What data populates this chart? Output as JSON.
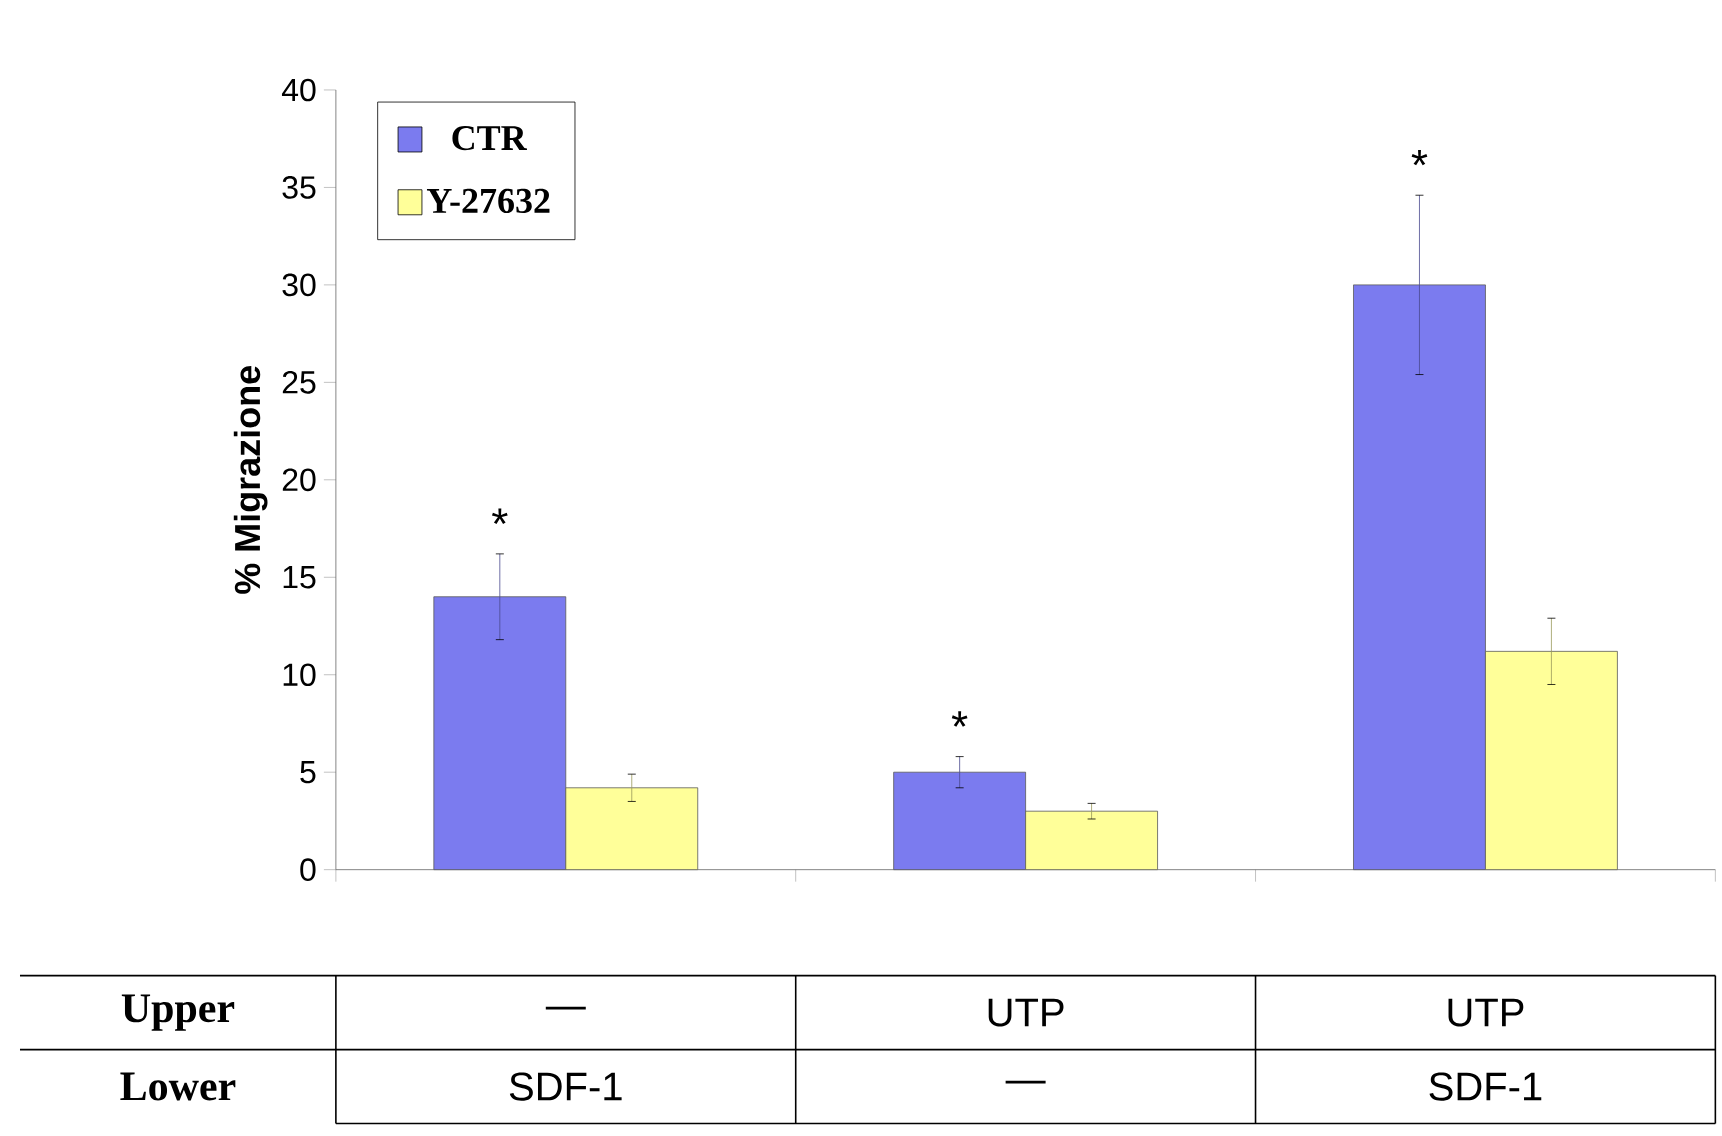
{
  "chart_data": {
    "type": "bar",
    "ylabel": "% Migrazione",
    "categories": [
      null,
      null,
      null
    ],
    "series": [
      {
        "name": "CTR",
        "color": "#7b7bef",
        "values": [
          14,
          5,
          30
        ],
        "errors": [
          2.2,
          0.8,
          4.6
        ]
      },
      {
        "name": "Y-27632",
        "color": "#ffff99",
        "values": [
          4.2,
          3.0,
          11.2
        ],
        "errors": [
          0.7,
          0.4,
          1.7
        ]
      }
    ],
    "ylim": [
      0,
      40
    ],
    "yticks": [
      0,
      5,
      10,
      15,
      20,
      25,
      30,
      35,
      40
    ],
    "grid": false,
    "legend": "top left",
    "annotations": [
      "*",
      "*",
      "*",
      "Upper",
      "—",
      "UTP",
      "UTP",
      "Lower",
      "SDF-1",
      "—",
      "SDF-1"
    ]
  }
}
